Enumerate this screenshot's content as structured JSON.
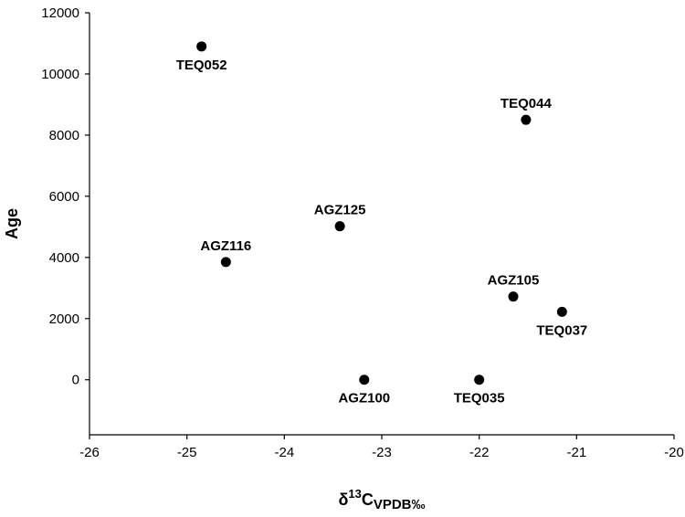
{
  "chart_data": {
    "type": "scatter",
    "title": "",
    "xlabel": {
      "prefix": "δ",
      "sup": "13",
      "main": "C",
      "sub": "VPDB‰"
    },
    "ylabel": "Age",
    "xlim": [
      -26,
      -20
    ],
    "ylim": [
      -1800,
      12000
    ],
    "xticks": [
      -26,
      -25,
      -24,
      -23,
      -22,
      -21,
      -20
    ],
    "yticks": [
      0,
      2000,
      4000,
      6000,
      8000,
      10000,
      12000
    ],
    "grid": false,
    "points": [
      {
        "label": "TEQ052",
        "x": -24.85,
        "y": 10900,
        "label_pos": "below"
      },
      {
        "label": "TEQ044",
        "x": -21.52,
        "y": 8500,
        "label_pos": "above"
      },
      {
        "label": "AGZ125",
        "x": -23.43,
        "y": 5020,
        "label_pos": "above"
      },
      {
        "label": "AGZ116",
        "x": -24.6,
        "y": 3850,
        "label_pos": "above"
      },
      {
        "label": "AGZ105",
        "x": -21.65,
        "y": 2720,
        "label_pos": "above"
      },
      {
        "label": "TEQ037",
        "x": -21.15,
        "y": 2220,
        "label_pos": "below"
      },
      {
        "label": "AGZ100",
        "x": -23.18,
        "y": 0,
        "label_pos": "below"
      },
      {
        "label": "TEQ035",
        "x": -22.0,
        "y": 0,
        "label_pos": "below"
      }
    ]
  }
}
